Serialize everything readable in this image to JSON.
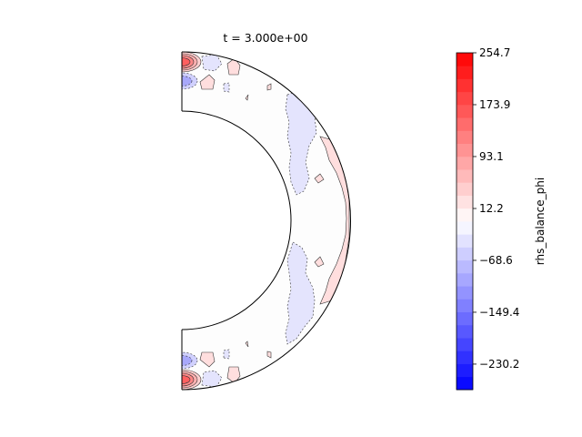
{
  "chart_data": {
    "type": "heatmap",
    "title": "t = 3.000e+00",
    "colorbar": {
      "label": "rhs_balance_phi",
      "range": [
        -270.0,
        254.7
      ],
      "tick_values": [
        254.7,
        173.9,
        93.1,
        12.2,
        -68.6,
        -149.4,
        -230.2
      ],
      "tick_labels": [
        "254.7",
        "173.9",
        "93.1",
        "12.2",
        "−68.6",
        "−149.4",
        "−230.2"
      ],
      "levels": 26,
      "colormap": "bwr",
      "min_color": "#0000ff",
      "mid_color": "#ffffff",
      "max_color": "#ff0000"
    },
    "domain": {
      "shape": "half annulus (meridional slice of a spherical shell)",
      "inner_radius_fraction": 0.65,
      "grid": false
    },
    "features": [
      {
        "name": "outer equatorial band",
        "sign": "positive",
        "level": 12.2
      },
      {
        "name": "mid-shell band",
        "sign": "negative",
        "level": -28.0
      },
      {
        "name": "polar cells near axis",
        "sign": "mixed",
        "max": 254.7,
        "min": -230.2
      }
    ]
  }
}
